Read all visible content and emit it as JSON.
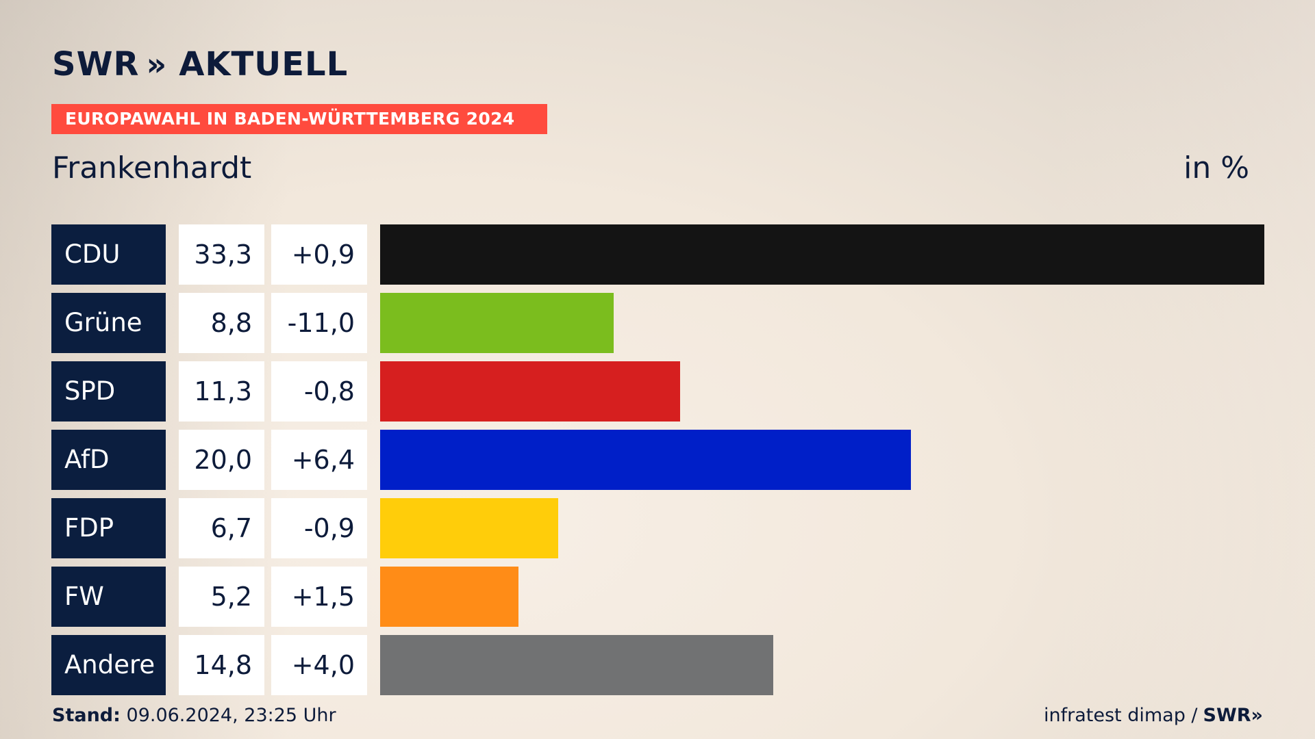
{
  "brand": {
    "name": "SWR",
    "suffix": "AKTUELL",
    "chevrons": "»"
  },
  "banner": "EUROPAWAHL IN BADEN-WÜRTTEMBERG 2024",
  "place": "Frankenhardt",
  "unit": "in %",
  "footer": {
    "stand_label": "Stand:",
    "stand_value": "09.06.2024, 23:25 Uhr",
    "source": "infratest dimap /",
    "source_brand": "SWR»"
  },
  "chart_data": {
    "type": "bar",
    "orientation": "horizontal",
    "categories": [
      "CDU",
      "Grüne",
      "SPD",
      "AfD",
      "FDP",
      "FW",
      "Andere"
    ],
    "values": [
      33.3,
      8.8,
      11.3,
      20.0,
      6.7,
      5.2,
      14.8
    ],
    "value_labels": [
      "33,3",
      "8,8",
      "11,3",
      "20,0",
      "6,7",
      "5,2",
      "14,8"
    ],
    "changes": [
      "+0,9",
      "-11,0",
      "-0,8",
      "+6,4",
      "-0,9",
      "+1,5",
      "+4,0"
    ],
    "colors": [
      "#141414",
      "#7bbd1e",
      "#d61f1f",
      "#001fc8",
      "#ffcd0a",
      "#ff8c17",
      "#717273"
    ],
    "xlim": [
      0,
      33.3
    ]
  }
}
